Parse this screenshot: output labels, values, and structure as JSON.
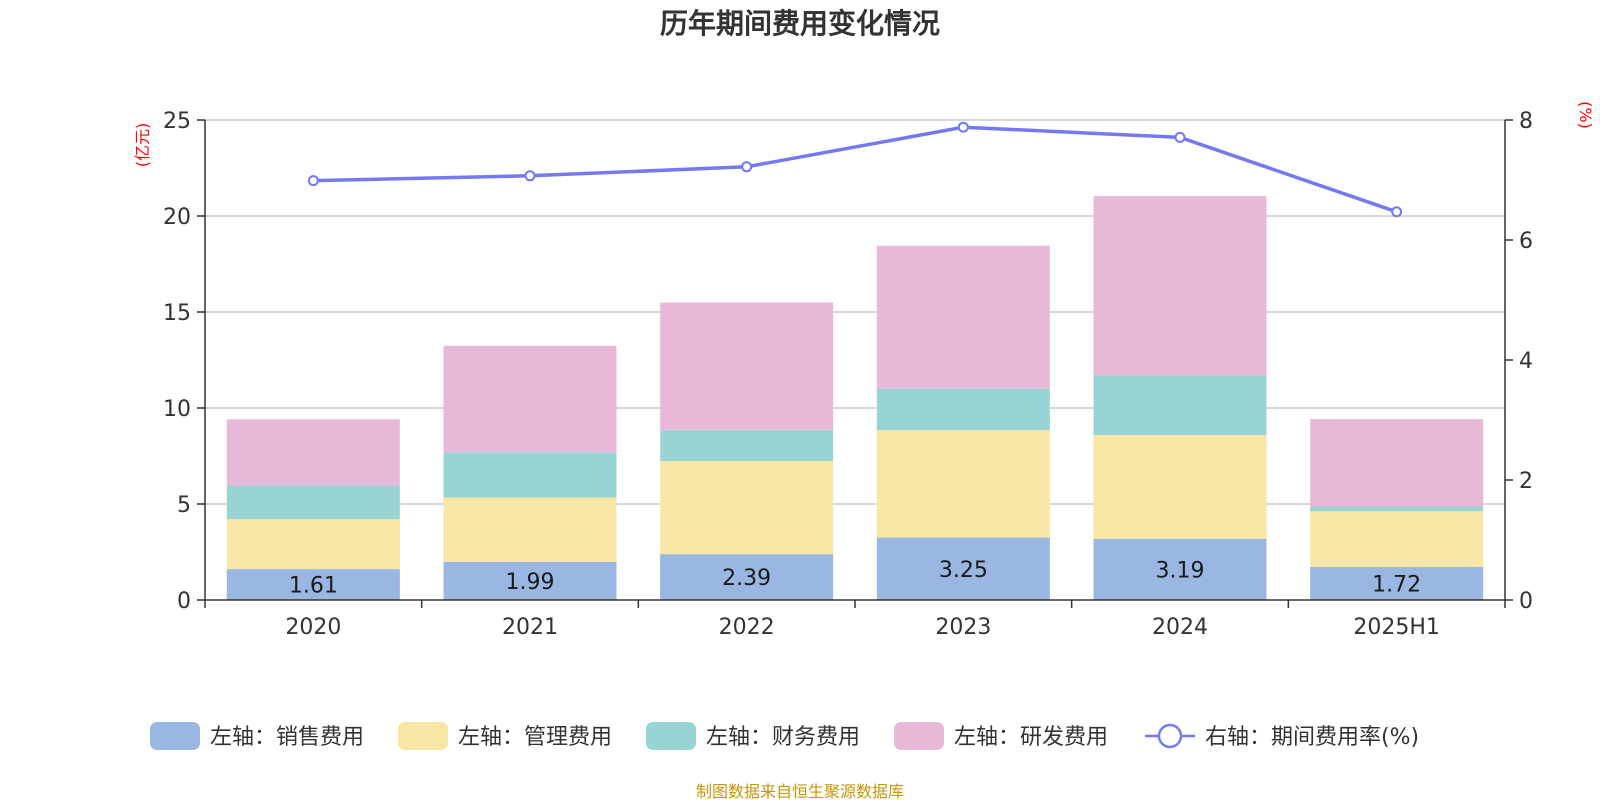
{
  "chart_data": {
    "type": "bar",
    "title": "历年期间费用变化情况",
    "categories": [
      "2020",
      "2021",
      "2022",
      "2023",
      "2024",
      "2025H1"
    ],
    "left_axis": {
      "unit": "(亿元)",
      "ylim": [
        0,
        25
      ],
      "ticks": [
        "0",
        "5",
        "10",
        "15",
        "20",
        "25"
      ]
    },
    "right_axis": {
      "unit": "(%)",
      "ylim": [
        0,
        8
      ],
      "ticks": [
        "0",
        "2",
        "4",
        "6",
        "8"
      ]
    },
    "series": [
      {
        "name": "左轴：销售费用",
        "kind": "stacked-bar",
        "axis": "left",
        "color": "#9ab7e3",
        "values": [
          1.61,
          1.99,
          2.39,
          3.25,
          3.19,
          1.72
        ],
        "labels": [
          "1.61",
          "1.99",
          "2.39",
          "3.25",
          "3.19",
          "1.72"
        ]
      },
      {
        "name": "左轴：管理费用",
        "kind": "stacked-bar",
        "axis": "left",
        "color": "#f7e6a6",
        "values": [
          2.6,
          3.35,
          4.85,
          5.6,
          5.4,
          2.9
        ]
      },
      {
        "name": "左轴：财务费用",
        "kind": "stacked-bar",
        "axis": "left",
        "color": "#98d4d4",
        "values": [
          1.75,
          2.35,
          1.6,
          2.15,
          3.1,
          0.25
        ]
      },
      {
        "name": "左轴：研发费用",
        "kind": "stacked-bar",
        "axis": "left",
        "color": "#e8b8d8",
        "values": [
          3.45,
          5.55,
          6.65,
          7.45,
          9.35,
          4.55
        ]
      },
      {
        "name": "右轴：期间费用率(%)",
        "kind": "line",
        "axis": "right",
        "color": "#7479f0",
        "values": [
          6.99,
          7.07,
          7.22,
          7.88,
          7.71,
          6.47
        ]
      }
    ],
    "grid": true,
    "legend_position": "bottom",
    "unit_color": "#ff0000"
  },
  "footer": {
    "source": "制图数据来自恒生聚源数据库",
    "color": "#c8960a"
  }
}
